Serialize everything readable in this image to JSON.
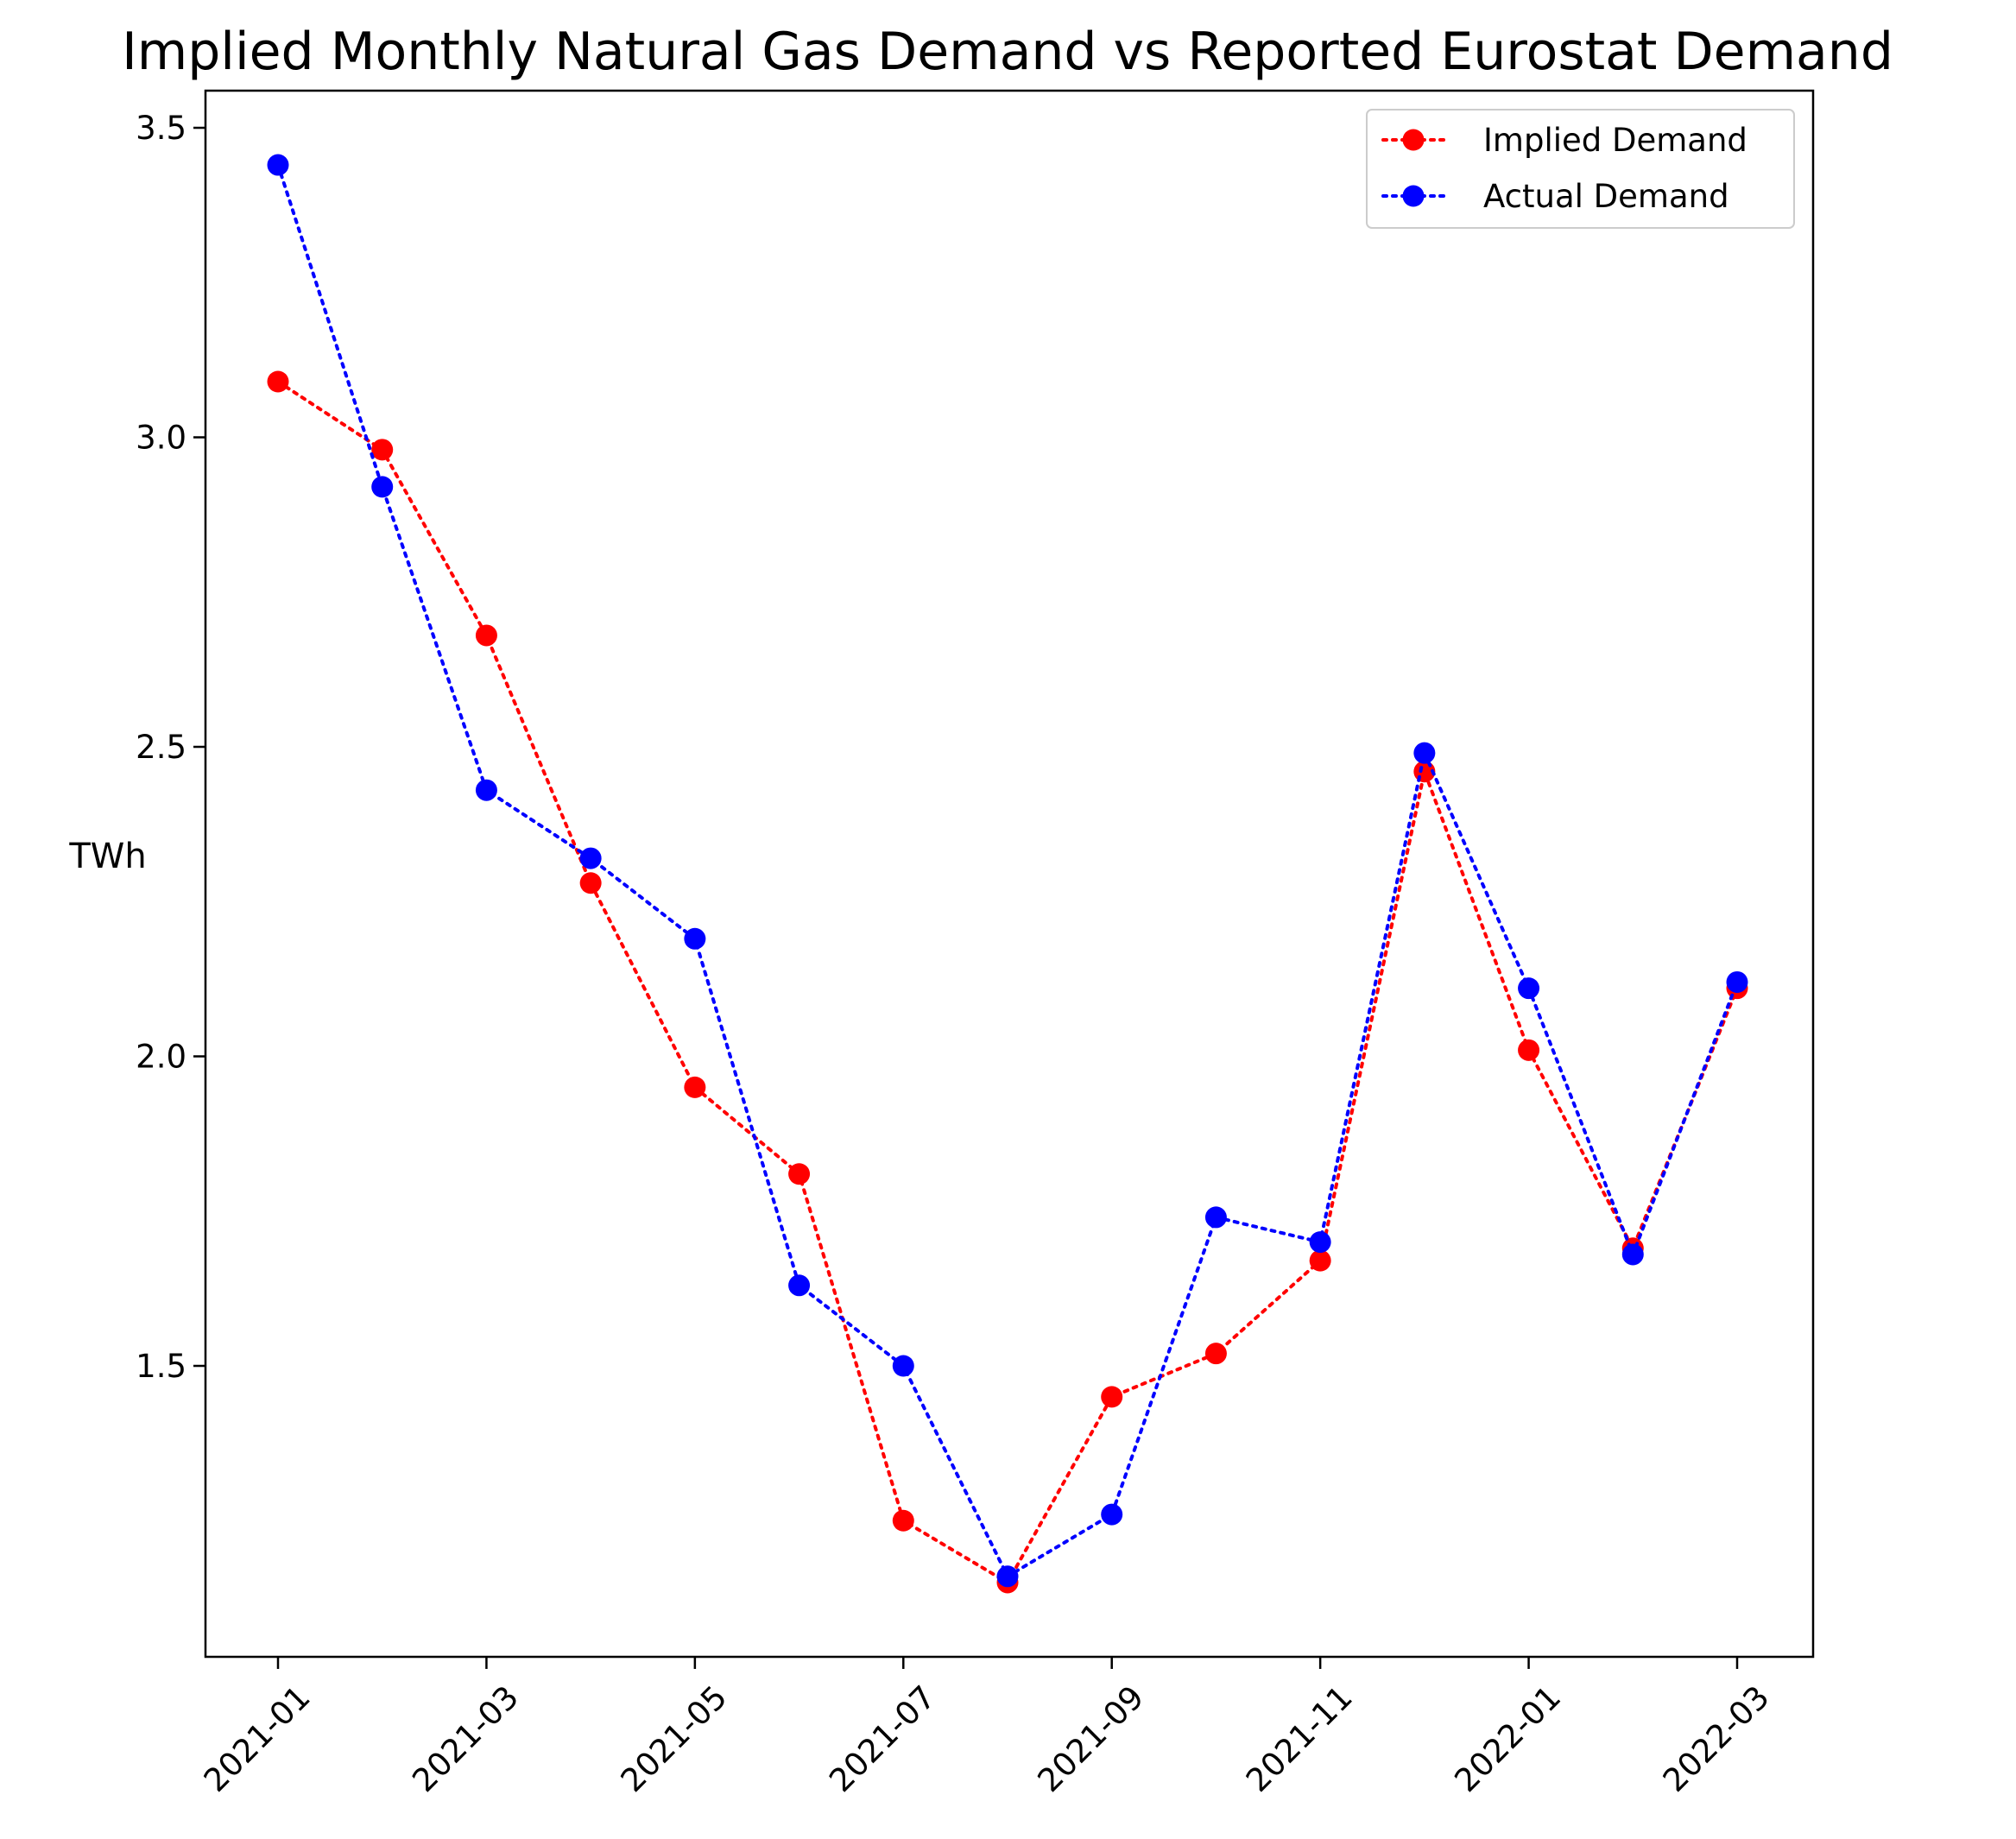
{
  "chart_data": {
    "type": "line",
    "title": "Implied Monthly Natural Gas Demand vs Reported Eurostat Demand",
    "xlabel": "",
    "ylabel": "TWh",
    "x": [
      "2021-01",
      "2021-02",
      "2021-03",
      "2021-04",
      "2021-05",
      "2021-06",
      "2021-07",
      "2021-08",
      "2021-09",
      "2021-10",
      "2021-11",
      "2021-12",
      "2022-01",
      "2022-02",
      "2022-03"
    ],
    "xticks": [
      "2021-01",
      "2021-03",
      "2021-05",
      "2021-07",
      "2021-09",
      "2021-11",
      "2022-01",
      "2022-03"
    ],
    "yticks": [
      "1.5",
      "2.0",
      "2.5",
      "3.0",
      "3.5"
    ],
    "ylim": [
      1.03,
      3.56
    ],
    "grid": false,
    "legend_position": "top-right",
    "series": [
      {
        "name": "Implied Demand",
        "color": "#ff0000",
        "line_style": "dotted",
        "marker": "circle",
        "values": [
          3.09,
          2.98,
          2.68,
          2.28,
          1.95,
          1.81,
          1.25,
          1.15,
          1.45,
          1.52,
          1.67,
          2.46,
          2.01,
          1.69,
          2.11
        ]
      },
      {
        "name": "Actual Demand",
        "color": "#0000ff",
        "line_style": "dotted",
        "marker": "circle",
        "values": [
          3.44,
          2.92,
          2.43,
          2.32,
          2.19,
          1.63,
          1.5,
          1.16,
          1.26,
          1.74,
          1.7,
          2.49,
          2.11,
          1.68,
          2.12
        ]
      }
    ]
  }
}
